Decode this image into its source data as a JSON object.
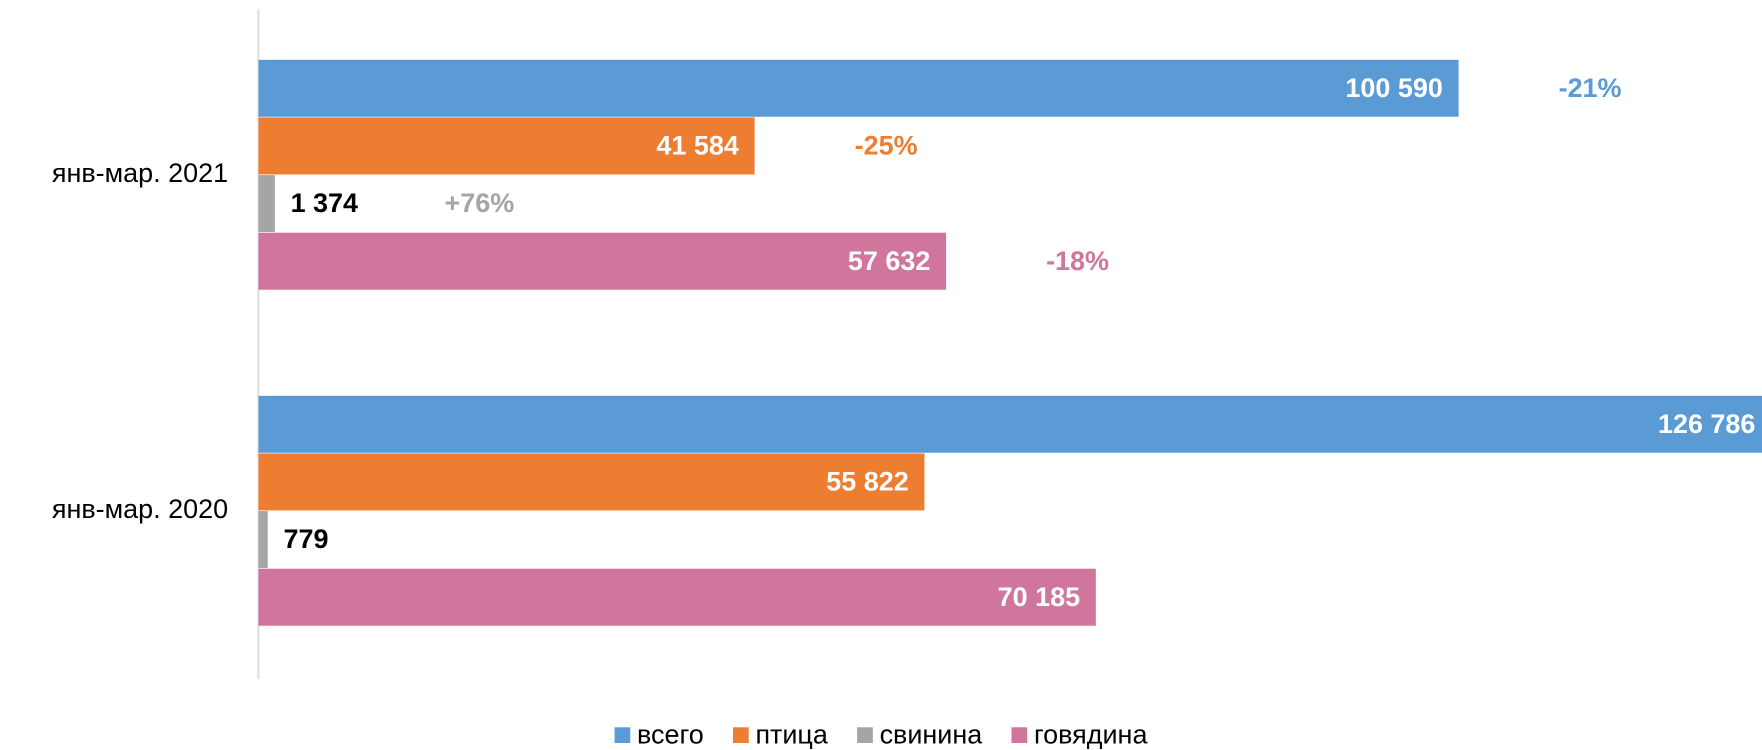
{
  "chart_data": {
    "type": "bar",
    "orientation": "horizontal",
    "categories": [
      "янв-мар. 2021",
      "янв-мар. 2020"
    ],
    "series": [
      {
        "name": "всего",
        "color": "#5b9bd5",
        "values": [
          100590,
          126786
        ],
        "value_labels": [
          "100 590",
          "126 786"
        ],
        "changes": [
          "-21%",
          null
        ]
      },
      {
        "name": "птица",
        "color": "#ed7d31",
        "values": [
          41584,
          55822
        ],
        "value_labels": [
          "41 584",
          "55 822"
        ],
        "changes": [
          "-25%",
          null
        ]
      },
      {
        "name": "свинина",
        "color": "#a5a5a5",
        "values": [
          1374,
          779
        ],
        "value_labels": [
          "1 374",
          "779"
        ],
        "changes": [
          "+76%",
          null
        ]
      },
      {
        "name": "говядина",
        "color": "#d0769d",
        "values": [
          57632,
          70185
        ],
        "value_labels": [
          "57 632",
          "70 185"
        ],
        "changes": [
          "-18%",
          null
        ]
      }
    ],
    "legend": "bottom"
  }
}
